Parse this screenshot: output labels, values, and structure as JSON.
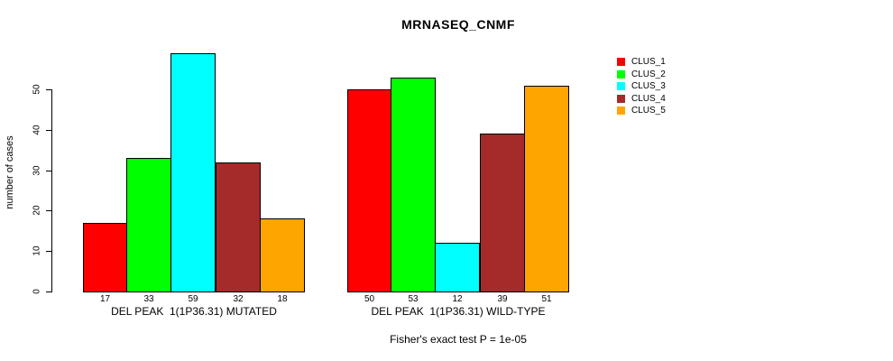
{
  "chart_data": {
    "type": "bar",
    "title": "MRNASEQ_CNMF",
    "ylabel": "number of cases",
    "xlabel": "",
    "ylim": [
      0,
      59
    ],
    "yticks": [
      0,
      10,
      20,
      30,
      40,
      50
    ],
    "grid": false,
    "legend_position": "top-right",
    "legend": [
      {
        "label": "CLUS_1",
        "color": "#FF0000"
      },
      {
        "label": "CLUS_2",
        "color": "#00FF00"
      },
      {
        "label": "CLUS_3",
        "color": "#00FFFF"
      },
      {
        "label": "CLUS_4",
        "color": "#A52A2A"
      },
      {
        "label": "CLUS_5",
        "color": "#FFA500"
      }
    ],
    "series_colors": [
      "#FF0000",
      "#00FF00",
      "#00FFFF",
      "#A52A2A",
      "#FFA500"
    ],
    "groups": [
      {
        "label": "DEL PEAK  1(1P36.31) MUTATED",
        "values": [
          17,
          33,
          59,
          32,
          18
        ]
      },
      {
        "label": "DEL PEAK  1(1P36.31) WILD-TYPE",
        "values": [
          50,
          53,
          12,
          39,
          51
        ]
      }
    ],
    "bar_value_labels_shown": true,
    "footnote": "Fisher's exact test P = 1e-05",
    "background_color": "#FFFFFF",
    "text_color": "#000000"
  }
}
